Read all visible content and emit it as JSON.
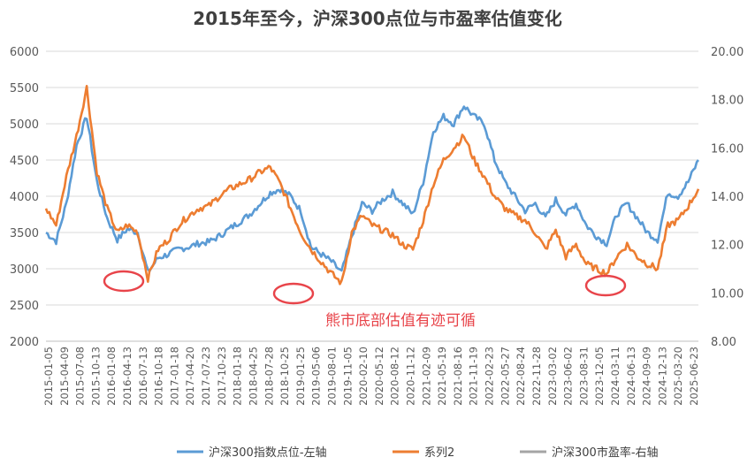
{
  "chart_data": {
    "type": "line",
    "title": "2015年至今，沪深300点位与市盈率估值变化",
    "left_axis": {
      "min": 2000,
      "max": 6000,
      "ticks": [
        "2000",
        "2500",
        "3000",
        "3500",
        "4000",
        "4500",
        "5000",
        "5500",
        "6000"
      ]
    },
    "right_axis": {
      "min": 8,
      "max": 20,
      "ticks": [
        "8.00",
        "10.00",
        "12.00",
        "14.00",
        "16.00",
        "18.00",
        "20.00"
      ]
    },
    "x_ticks": [
      "2015-01-05",
      "2015-04-09",
      "2015-07-08",
      "2015-10-13",
      "2016-01-08",
      "2016-04-13",
      "2016-07-13",
      "2016-10-18",
      "2017-01-18",
      "2017-04-20",
      "2017-07-23",
      "2017-10-23",
      "2018-01-18",
      "2018-04-25",
      "2018-07-28",
      "2018-10-25",
      "2019-01-25",
      "2019-05-06",
      "2019-08-01",
      "2019-11-05",
      "2020-02-10",
      "2020-05-12",
      "2020-08-12",
      "2020-11-12",
      "2021-02-09",
      "2021-05-19",
      "2021-08-16",
      "2021-11-19",
      "2022-02-23",
      "2022-05-27",
      "2022-08-24",
      "2022-11-28",
      "2023-03-02",
      "2023-06-02",
      "2023-08-31",
      "2023-12-05",
      "2024-03-11",
      "2024-06-13",
      "2024-09-09",
      "2024-12-13",
      "2025-03-20",
      "2025-06-23"
    ],
    "series": [
      {
        "name": "沪深300指数点位-左轴",
        "color": "#5b9bd5",
        "axis": "left",
        "values": [
          3500,
          3380,
          3900,
          4700,
          5100,
          4200,
          3700,
          3400,
          3550,
          3500,
          2950,
          3150,
          3200,
          3270,
          3300,
          3350,
          3370,
          3450,
          3550,
          3650,
          3750,
          3900,
          4050,
          4100,
          4000,
          3800,
          3300,
          3200,
          3100,
          2950,
          3450,
          3900,
          3800,
          3950,
          4050,
          3900,
          3750,
          4200,
          4900,
          5100,
          5000,
          5250,
          5100,
          5000,
          4500,
          4200,
          4000,
          3800,
          3900,
          3700,
          3950,
          3750,
          3900,
          3600,
          3450,
          3350,
          3750,
          3900,
          3700,
          3500,
          3400,
          4050,
          4000,
          4200,
          4500
        ]
      },
      {
        "name": "系列2",
        "color": "#ed7d31",
        "axis": "right",
        "values": [
          13.5,
          12.8,
          14.8,
          16.5,
          18.5,
          15.0,
          13.5,
          12.5,
          12.8,
          12.5,
          10.6,
          11.8,
          12.2,
          12.8,
          13.2,
          13.5,
          13.6,
          14.0,
          14.3,
          14.5,
          14.7,
          15.0,
          15.2,
          14.5,
          13.5,
          12.5,
          11.8,
          11.3,
          10.8,
          10.4,
          12.5,
          13.2,
          12.8,
          12.6,
          12.4,
          12.0,
          11.8,
          13.0,
          14.5,
          15.5,
          16.0,
          16.5,
          15.5,
          14.8,
          14.0,
          13.5,
          13.2,
          13.0,
          12.5,
          11.8,
          12.6,
          11.5,
          12.0,
          11.2,
          11.0,
          10.8,
          11.5,
          12.0,
          11.5,
          11.2,
          11.0,
          12.8,
          13.0,
          13.6,
          14.3
        ]
      },
      {
        "name": "沪深300市盈率-右轴",
        "color": "#a5a5a5",
        "axis": "right",
        "values": []
      }
    ],
    "annotation": "熊市底部估值有迹可循",
    "grid": true,
    "legend": "bottom"
  }
}
